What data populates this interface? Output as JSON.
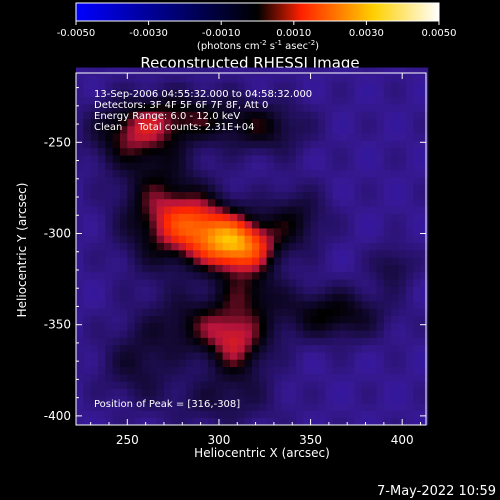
{
  "chart_data": {
    "type": "heatmap",
    "title": "Reconstructed RHESSI Image",
    "colorbar": {
      "ticks": [
        "-0.0050",
        "-0.0030",
        "-0.0010",
        "0.0010",
        "0.0030",
        "0.0050"
      ],
      "label": "(photons cm",
      "label_exp1": "-2",
      "label_mid": " s",
      "label_exp2": "-1",
      "label_end": " asec",
      "label_exp3": "-2",
      "label_close": ")",
      "range": [
        -0.005,
        0.005
      ],
      "colors": [
        "#0000ff",
        "#000000",
        "#ff2000",
        "#ffd000",
        "#ffffff"
      ]
    },
    "xlabel": "Heliocentric X (arcsec)",
    "ylabel": "Heliocentric Y (arcsec)",
    "xlim": [
      222,
      413
    ],
    "ylim": [
      -405,
      -212
    ],
    "x_ticks": [
      250,
      300,
      350,
      400
    ],
    "y_ticks": [
      -250,
      -300,
      -350,
      -400
    ],
    "info": {
      "line1": "13-Sep-2006 04:55:32.000 to 04:58:32.000",
      "line2": "Detectors: 3F 4F 5F 6F 7F 8F, Att 0",
      "line3": "Energy Range: 6.0 - 12.0 keV",
      "line4": "Clean     Total counts: 2.31E+04",
      "peak": "Position of Peak = [316,-308]"
    },
    "peak": [
      316,
      -308
    ],
    "sources": [
      {
        "x": 311,
        "y": -307,
        "amp": 0.0048,
        "sx": 14,
        "sy": 11
      },
      {
        "x": 290,
        "y": -296,
        "amp": 0.003,
        "sx": 14,
        "sy": 12
      },
      {
        "x": 268,
        "y": -288,
        "amp": 0.0024,
        "sx": 16,
        "sy": 22
      },
      {
        "x": 252,
        "y": -246,
        "amp": 0.0022,
        "sx": 16,
        "sy": 12
      },
      {
        "x": 282,
        "y": -236,
        "amp": 0.002,
        "sx": 22,
        "sy": 10
      },
      {
        "x": 325,
        "y": -242,
        "amp": 0.0017,
        "sx": 16,
        "sy": 10
      },
      {
        "x": 342,
        "y": -292,
        "amp": 0.0016,
        "sx": 12,
        "sy": 12
      },
      {
        "x": 362,
        "y": -344,
        "amp": 0.0021,
        "sx": 20,
        "sy": 10
      },
      {
        "x": 292,
        "y": -350,
        "amp": 0.0019,
        "sx": 22,
        "sy": 12
      },
      {
        "x": 310,
        "y": -362,
        "amp": 0.0022,
        "sx": 12,
        "sy": 14
      },
      {
        "x": 255,
        "y": -372,
        "amp": 0.0013,
        "sx": 14,
        "sy": 14
      },
      {
        "x": 300,
        "y": -392,
        "amp": 0.001,
        "sx": 22,
        "sy": 10
      },
      {
        "x": 395,
        "y": -318,
        "amp": 0.0013,
        "sx": 8,
        "sy": 8
      },
      {
        "x": 318,
        "y": -332,
        "amp": 0.0014,
        "sx": 12,
        "sy": 8
      }
    ]
  },
  "footer": {
    "timestamp": "7-May-2022 10:59"
  }
}
